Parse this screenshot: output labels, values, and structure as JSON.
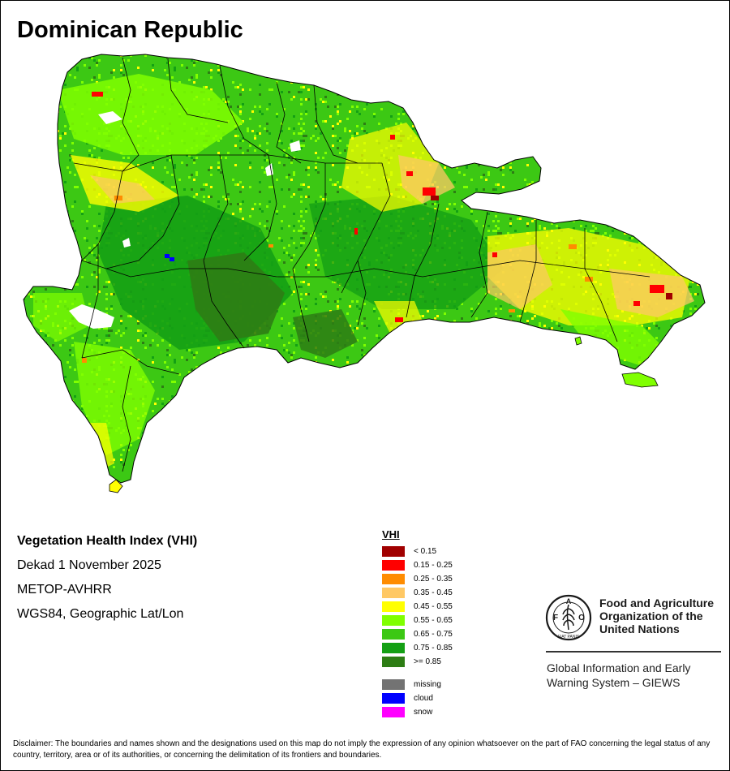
{
  "map": {
    "title": "Dominican Republic",
    "palette": {
      "lt_015": "#a10000",
      "r015_025": "#ff0000",
      "r025_035": "#ff8c00",
      "r035_045": "#ffc864",
      "r045_055": "#ffff00",
      "r055_065": "#80ff00",
      "r065_075": "#3cc814",
      "r075_085": "#14a014",
      "ge_085": "#2d7d14",
      "missing": "#737373",
      "cloud": "#0000ff",
      "snow": "#ff00ff",
      "boundary": "#000000",
      "background": "#ffffff"
    }
  },
  "info": {
    "title": "Vegetation Health Index (VHI)",
    "dekad": "Dekad 1 November 2025",
    "sensor": "METOP-AVHRR",
    "projection": "WGS84, Geographic Lat/Lon"
  },
  "legend": {
    "title": "VHI",
    "classes": [
      {
        "label": "< 0.15",
        "color": "#a10000"
      },
      {
        "label": "0.15 - 0.25",
        "color": "#ff0000"
      },
      {
        "label": "0.25 - 0.35",
        "color": "#ff8c00"
      },
      {
        "label": "0.35 - 0.45",
        "color": "#ffc864"
      },
      {
        "label": "0.45 - 0.55",
        "color": "#ffff00"
      },
      {
        "label": "0.55 - 0.65",
        "color": "#80ff00"
      },
      {
        "label": "0.65 - 0.75",
        "color": "#3cc814"
      },
      {
        "label": "0.75 - 0.85",
        "color": "#14a014"
      },
      {
        "label": ">= 0.85",
        "color": "#2d7d14"
      }
    ],
    "special": [
      {
        "label": "missing",
        "color": "#737373"
      },
      {
        "label": "cloud",
        "color": "#0000ff"
      },
      {
        "label": "snow",
        "color": "#ff00ff"
      }
    ]
  },
  "logo": {
    "org_line1": "Food and Agriculture",
    "org_line2": "Organization of the",
    "org_line3": "United Nations",
    "system_line1": "Global Information and Early",
    "system_line2": "Warning System – GIEWS",
    "emblem_letters": "FAO",
    "emblem_motto": "FIAT PANIS"
  },
  "disclaimer": "Disclaimer: The boundaries and names shown and the designations used on this map do not imply the expression of any opinion whatsoever on the part of FAO concerning the legal status of any country, territory, area or of its authorities, or concerning the delimitation of its frontiers and boundaries."
}
